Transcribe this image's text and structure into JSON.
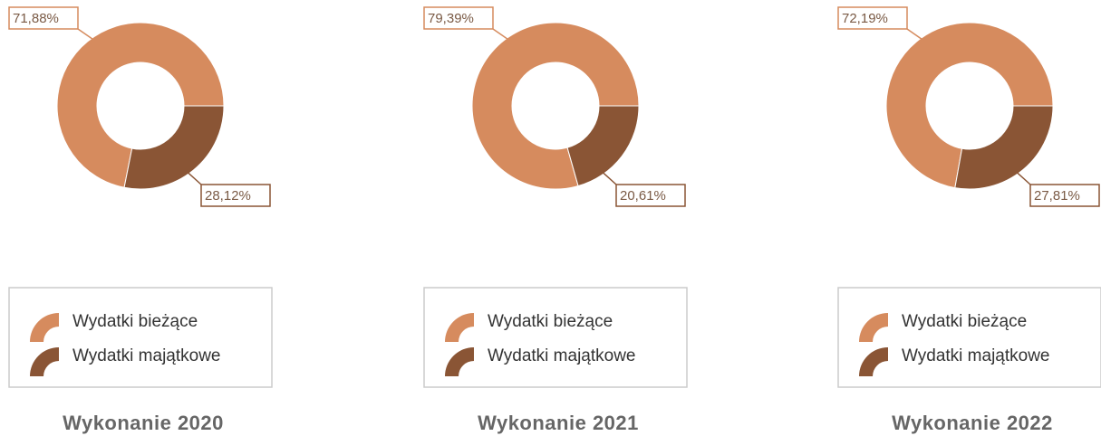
{
  "chart_data": [
    {
      "type": "donut",
      "title": "Wykonanie 2020",
      "categories": [
        "Wydatki bieżące",
        "Wydatki majątkowe"
      ],
      "values": [
        71.88,
        28.12
      ],
      "value_labels": [
        "71,88%",
        "28,12%"
      ],
      "colors": [
        "#d68b5e",
        "#8a5535"
      ]
    },
    {
      "type": "donut",
      "title": "Wykonanie 2021",
      "categories": [
        "Wydatki bieżące",
        "Wydatki majątkowe"
      ],
      "values": [
        79.39,
        20.61
      ],
      "value_labels": [
        "79,39%",
        "20,61%"
      ],
      "colors": [
        "#d68b5e",
        "#8a5535"
      ]
    },
    {
      "type": "donut",
      "title": "Wykonanie 2022",
      "categories": [
        "Wydatki bieżące",
        "Wydatki majątkowe"
      ],
      "values": [
        72.19,
        27.81
      ],
      "value_labels": [
        "72,19%",
        "27,81%"
      ],
      "colors": [
        "#d68b5e",
        "#8a5535"
      ]
    }
  ]
}
